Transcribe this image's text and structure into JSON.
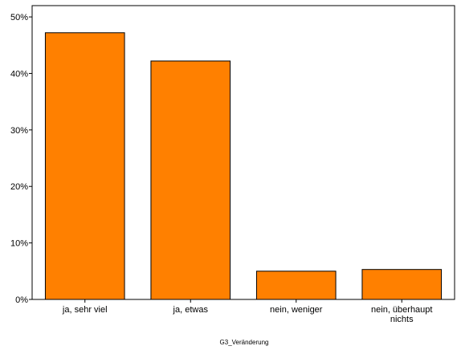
{
  "chart_data": {
    "type": "bar",
    "categories": [
      [
        "ja, sehr viel"
      ],
      [
        "ja, etwas"
      ],
      [
        "nein, weniger"
      ],
      [
        "nein, überhaupt",
        "nichts"
      ]
    ],
    "values": [
      47.2,
      42.2,
      5.0,
      5.3
    ],
    "xlabel": "G3_Veränderung",
    "ylabel": "",
    "ylim": [
      0,
      52
    ],
    "yticks": [
      0,
      10,
      20,
      30,
      40,
      50
    ],
    "ytick_labels": [
      "0%",
      "10%",
      "20%",
      "30%",
      "40%",
      "50%"
    ],
    "grid": false,
    "legend": false,
    "colors": {
      "bar_fill": "#ff8000",
      "bar_stroke": "#000000",
      "axis": "#000000",
      "background": "#ffffff"
    }
  }
}
